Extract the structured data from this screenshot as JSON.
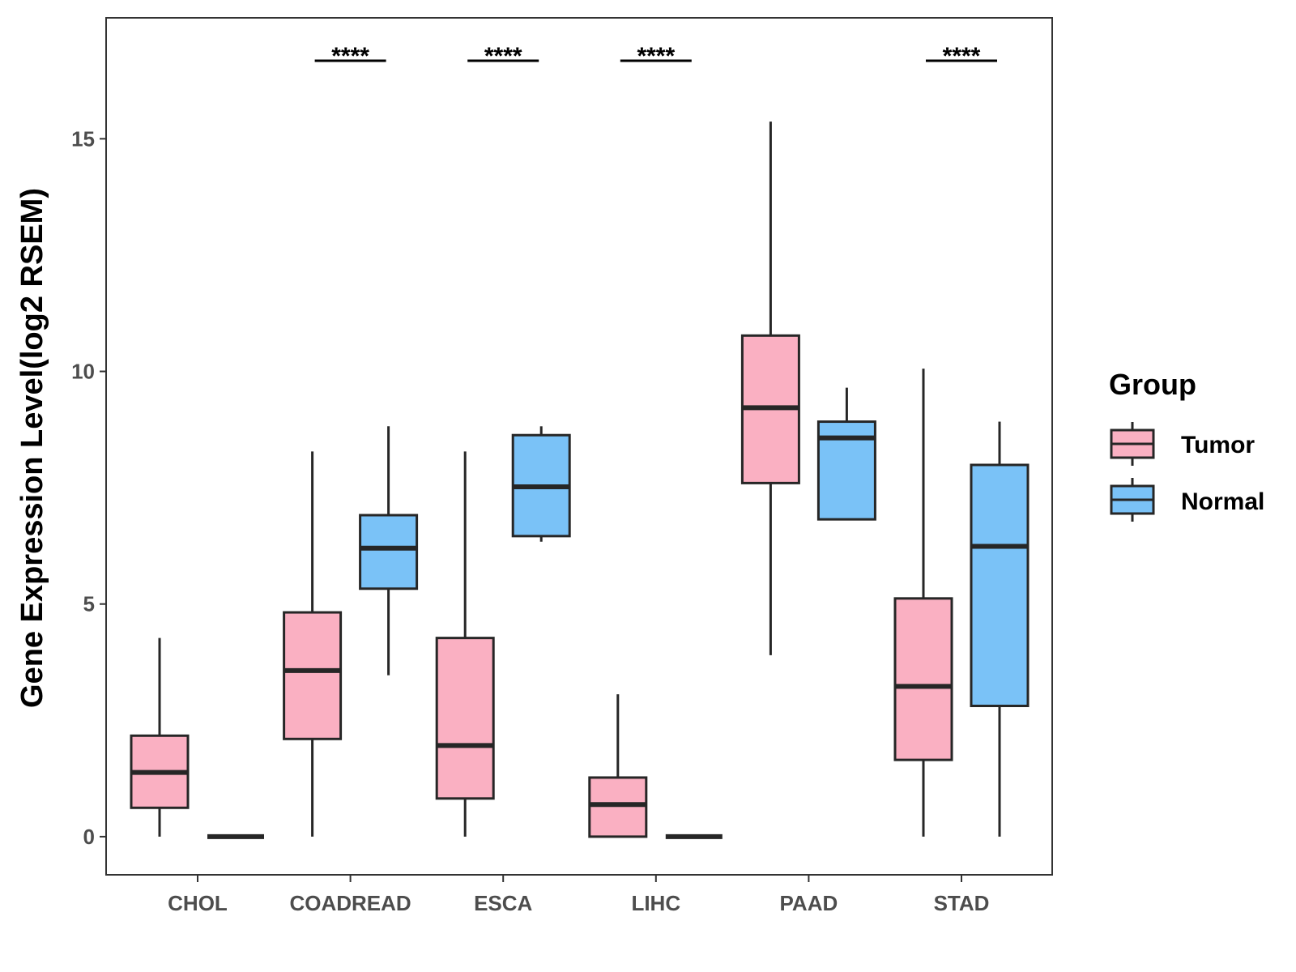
{
  "chart_data": {
    "type": "boxplot",
    "title": "",
    "xlabel": "",
    "ylabel": "Gene Expression Level(log2 RSEM)",
    "ylim": [
      -0.82,
      17.6
    ],
    "yticks": [
      0,
      5,
      10,
      15
    ],
    "categories": [
      "CHOL",
      "COADREAD",
      "ESCA",
      "LIHC",
      "PAAD",
      "STAD"
    ],
    "significance": [
      "",
      "****",
      "****",
      "****",
      "",
      "****"
    ],
    "legend": {
      "title": "Group",
      "position": "right"
    },
    "series": [
      {
        "name": "Tumor",
        "color": "#FAB0C2",
        "boxes": [
          {
            "min": 0.0,
            "q1": 0.62,
            "median": 1.38,
            "q3": 2.17,
            "max": 4.27
          },
          {
            "min": 0.0,
            "q1": 2.1,
            "median": 3.57,
            "q3": 4.82,
            "max": 8.28
          },
          {
            "min": 0.0,
            "q1": 0.82,
            "median": 1.96,
            "q3": 4.27,
            "max": 8.28
          },
          {
            "min": 0.0,
            "q1": 0.0,
            "median": 0.69,
            "q3": 1.27,
            "max": 3.06
          },
          {
            "min": 3.9,
            "q1": 7.6,
            "median": 9.22,
            "q3": 10.77,
            "max": 15.37
          },
          {
            "min": 0.0,
            "q1": 1.65,
            "median": 3.23,
            "q3": 5.12,
            "max": 10.06
          }
        ]
      },
      {
        "name": "Normal",
        "color": "#7AC2F7",
        "boxes": [
          {
            "min": 0.0,
            "q1": 0.0,
            "median": 0.0,
            "q3": 0.0,
            "max": 0.0
          },
          {
            "min": 3.47,
            "q1": 5.33,
            "median": 6.2,
            "q3": 6.91,
            "max": 8.82
          },
          {
            "min": 6.34,
            "q1": 6.46,
            "median": 7.52,
            "q3": 8.63,
            "max": 8.82
          },
          {
            "min": 0.0,
            "q1": 0.0,
            "median": 0.0,
            "q3": 0.0,
            "max": 0.0
          },
          {
            "min": 6.82,
            "q1": 6.82,
            "median": 8.57,
            "q3": 8.92,
            "max": 9.65
          },
          {
            "min": 0.0,
            "q1": 2.81,
            "median": 6.24,
            "q3": 7.99,
            "max": 8.92
          }
        ]
      }
    ]
  }
}
